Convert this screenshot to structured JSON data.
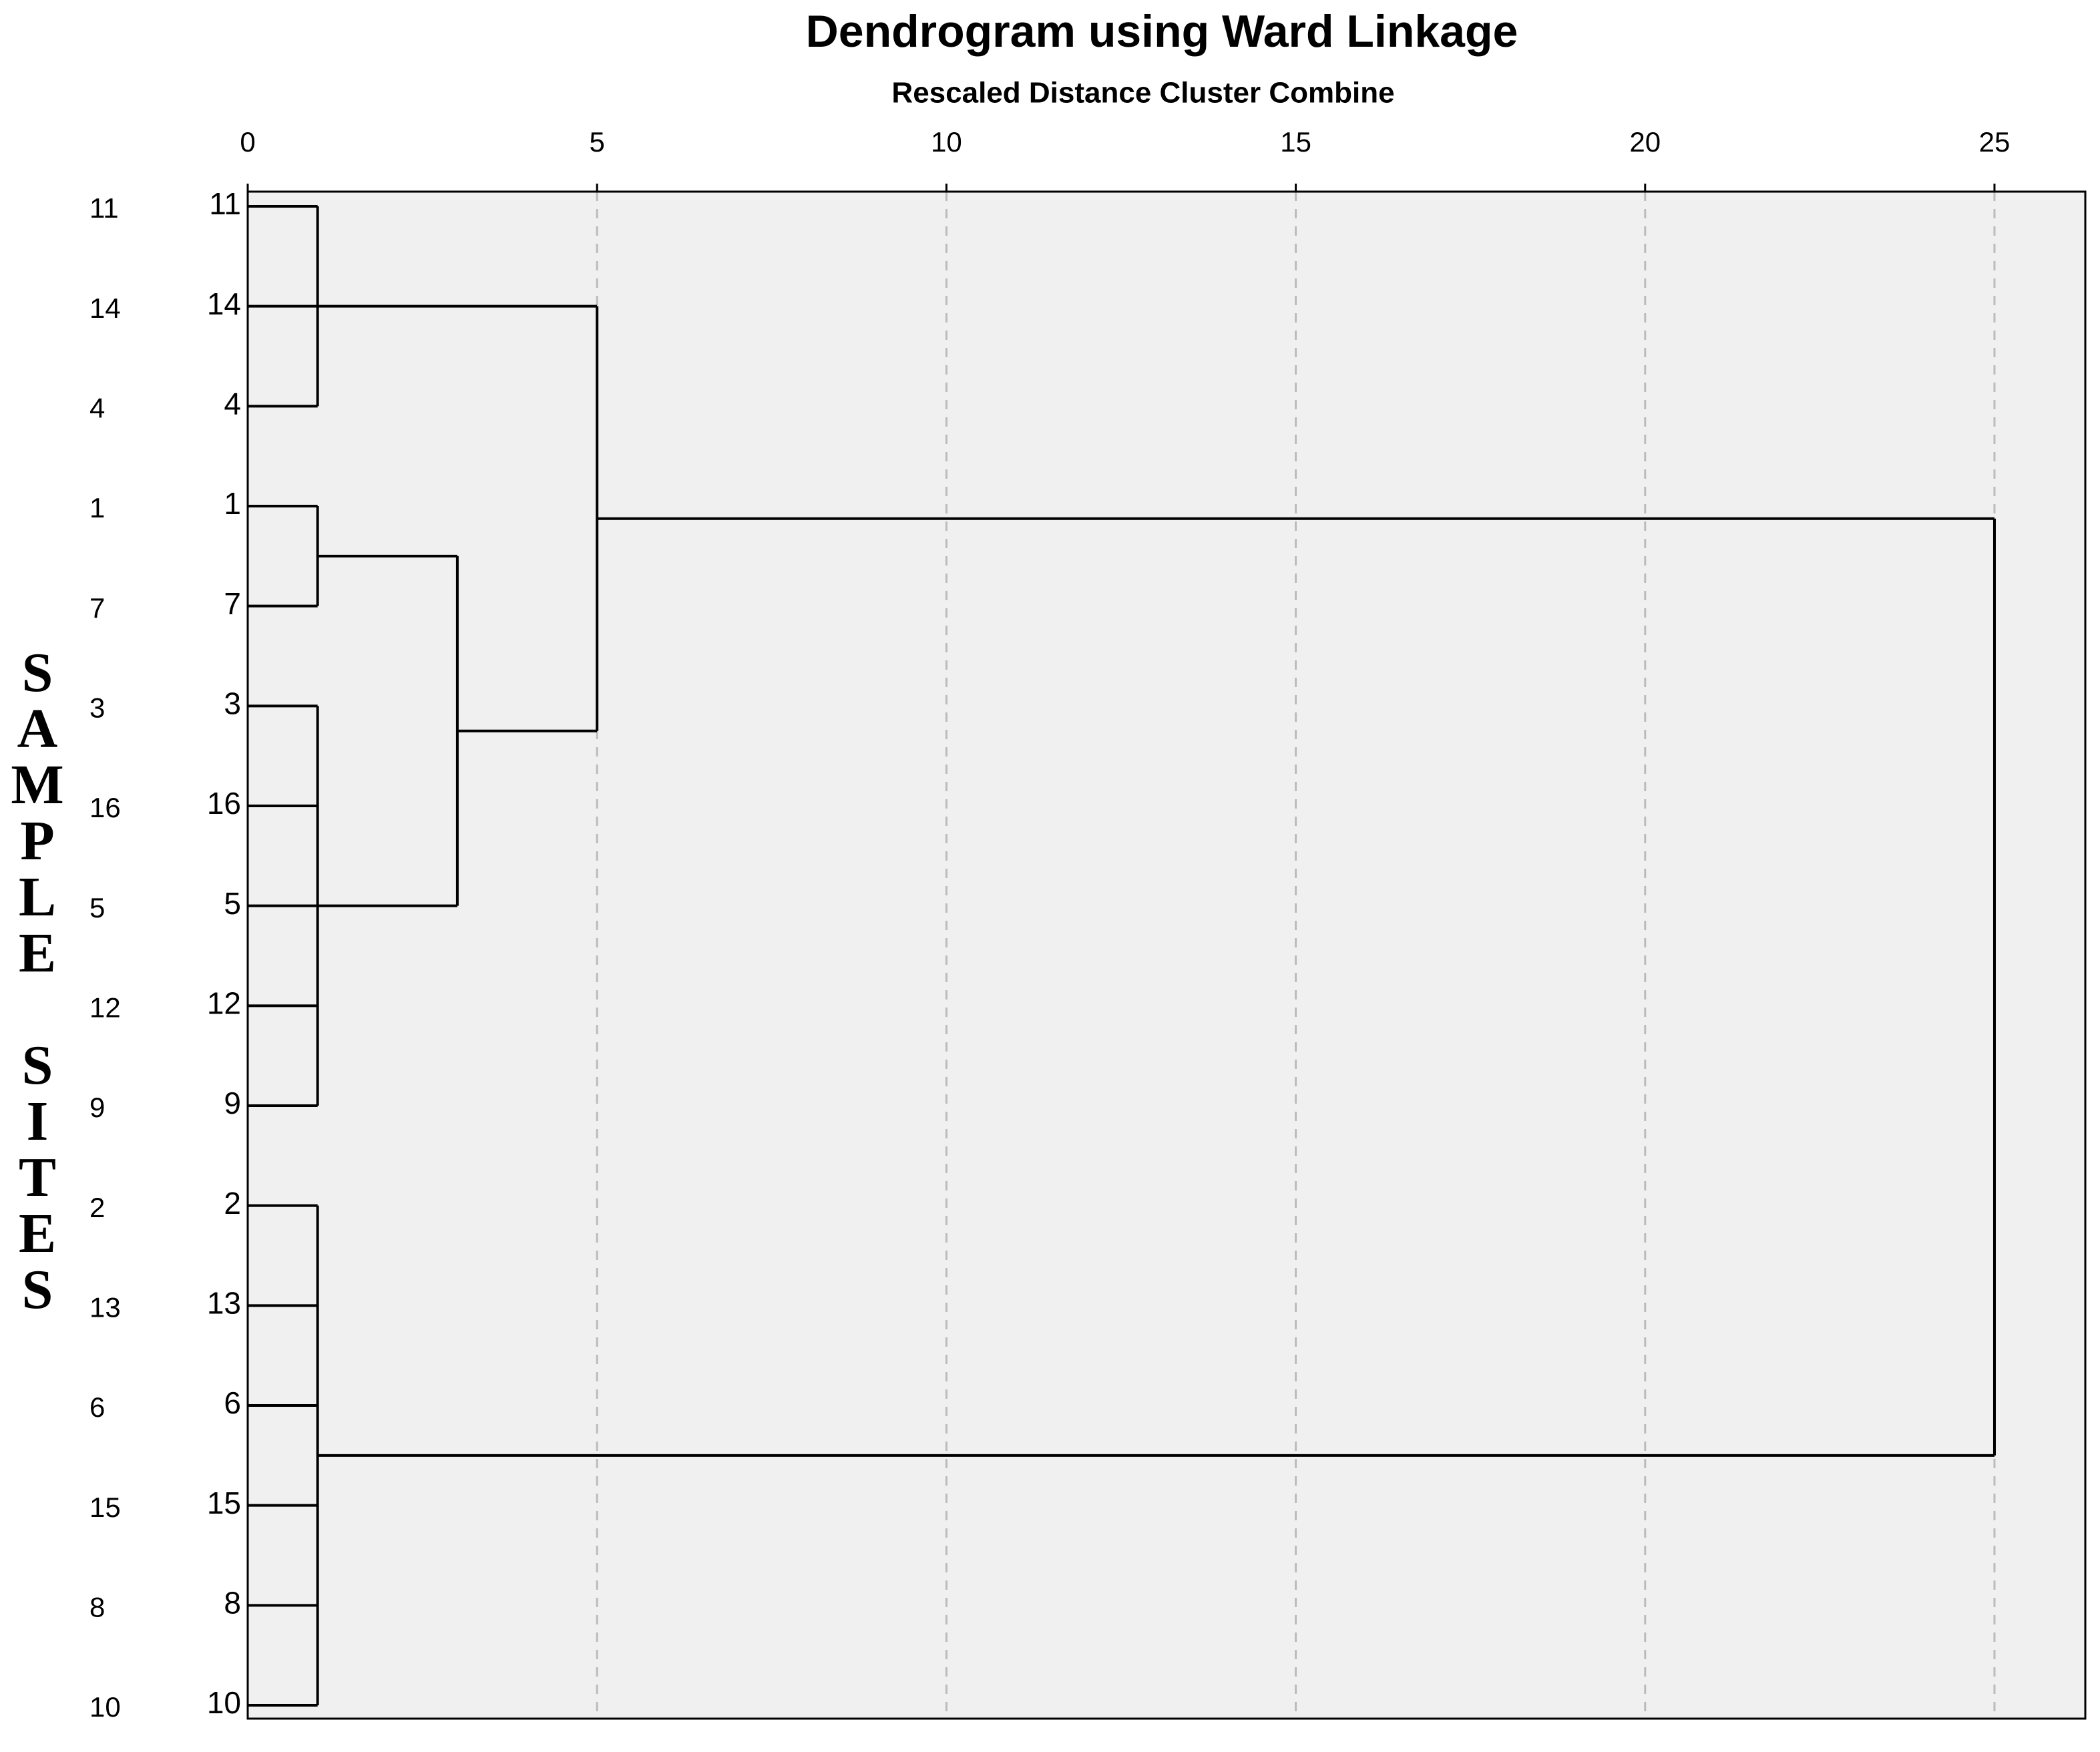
{
  "chart_data": {
    "type": "dendrogram",
    "title": "Dendrogram using Ward Linkage",
    "subtitle": "Rescaled Distance Cluster Combine",
    "y_label": "SAMPLE SITES",
    "case_labels": [
      "11",
      "14",
      "4",
      "1",
      "7",
      "3",
      "16",
      "5",
      "12",
      "9",
      "2",
      "13",
      "6",
      "15",
      "8",
      "10"
    ],
    "leaves": [
      "11",
      "14",
      "4",
      "1",
      "7",
      "3",
      "16",
      "5",
      "12",
      "9",
      "2",
      "13",
      "6",
      "15",
      "8",
      "10"
    ],
    "merges": [
      {
        "children": [
          0,
          1,
          2
        ],
        "height": 1
      },
      {
        "children": [
          3,
          4
        ],
        "height": 1
      },
      {
        "children": [
          5,
          6,
          7,
          8,
          9
        ],
        "height": 1
      },
      {
        "children": [
          17,
          18
        ],
        "height": 3
      },
      {
        "children": [
          16,
          19
        ],
        "height": 5
      },
      {
        "children": [
          10,
          11,
          12,
          13,
          14,
          15
        ],
        "height": 1
      },
      {
        "children": [
          20,
          21
        ],
        "height": 25
      }
    ],
    "xlim": [
      0,
      26.3
    ],
    "xticks": [
      0,
      5,
      10,
      15,
      20,
      25
    ],
    "grid": true,
    "color": "#000000"
  }
}
